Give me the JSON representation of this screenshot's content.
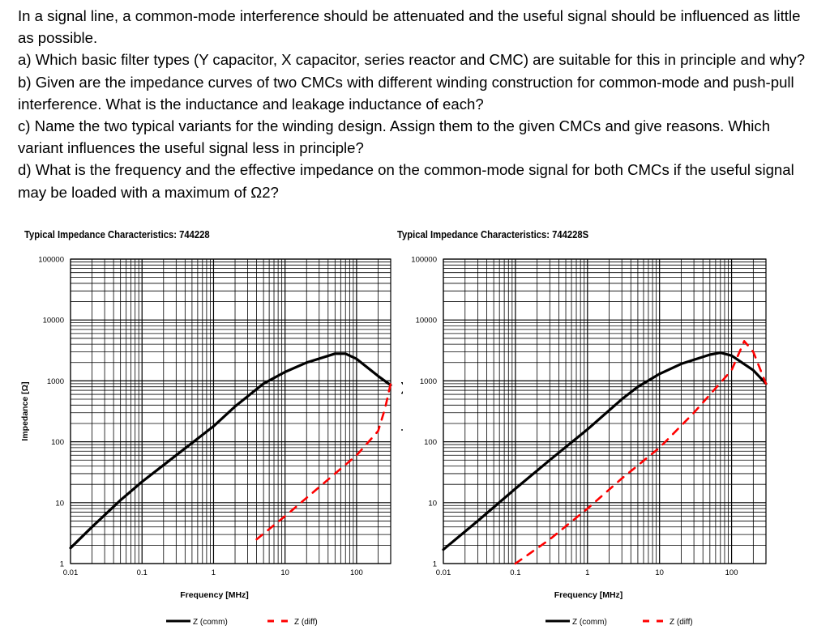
{
  "question": {
    "intro": "In a signal line, a common-mode interference should be attenuated and the useful signal should be influenced as little as possible.",
    "part_a": "a) Which basic filter types (Y capacitor, X capacitor, series reactor and CMC) are suitable for this in principle and why?",
    "part_b": "b) Given are the impedance curves of two CMCs with different winding construction for common-mode and push-pull interference. What is the inductance and leakage inductance of each?",
    "part_c": "c) Name the two typical variants for the winding design. Assign them to the given CMCs and give reasons. Which variant influences the useful signal less in principle?",
    "part_d": "d)  What is the frequency and the effective impedance on the common-mode signal for both CMCs if the useful signal may be loaded with a maximum of Ω2?"
  },
  "charts_meta": {
    "colors": {
      "comm": "#000000",
      "diff": "#ff0000",
      "grid": "#000000"
    }
  },
  "chart_data": [
    {
      "type": "line",
      "title": "Typical Impedance Characteristics:  744228",
      "xlabel": "Frequency [MHz]",
      "ylabel": "Impedance [Ω]",
      "xscale": "log",
      "yscale": "log",
      "xlim": [
        0.01,
        300
      ],
      "ylim": [
        1,
        100000
      ],
      "x_ticks": [
        "0.01",
        "0.1",
        "1",
        "10",
        "100"
      ],
      "y_ticks": [
        "1",
        "10",
        "100",
        "1000",
        "10000",
        "100000"
      ],
      "legend": [
        "Z (comm)",
        "Z (diff)"
      ],
      "series": [
        {
          "name": "Z (comm)",
          "style": "solid",
          "x": [
            0.01,
            0.02,
            0.05,
            0.1,
            0.3,
            1,
            2,
            5,
            10,
            20,
            50,
            70,
            100,
            200,
            300
          ],
          "y": [
            1.8,
            4,
            11,
            22,
            60,
            180,
            380,
            900,
            1400,
            2000,
            2800,
            2800,
            2300,
            1200,
            850
          ]
        },
        {
          "name": "Z (diff)",
          "style": "dashed",
          "x": [
            4,
            10,
            30,
            100,
            200,
            250,
            300
          ],
          "y": [
            2.5,
            6,
            18,
            60,
            150,
            350,
            900
          ]
        }
      ]
    },
    {
      "type": "line",
      "title": "Typical Impedance Characteristics:  744228S",
      "xlabel": "Frequency [MHz]",
      "ylabel": "Impedance [Ω]",
      "xscale": "log",
      "yscale": "log",
      "xlim": [
        0.01,
        300
      ],
      "ylim": [
        1,
        100000
      ],
      "x_ticks": [
        "0.01",
        "0.1",
        "1",
        "10",
        "100"
      ],
      "y_ticks": [
        "1",
        "10",
        "100",
        "1000",
        "10000",
        "100000"
      ],
      "legend": [
        "Z (comm)",
        "Z (diff)"
      ],
      "series": [
        {
          "name": "Z (comm)",
          "style": "solid",
          "x": [
            0.01,
            0.03,
            0.1,
            0.3,
            1,
            3,
            5,
            10,
            20,
            50,
            70,
            100,
            200,
            300
          ],
          "y": [
            1.7,
            5,
            17,
            50,
            160,
            500,
            800,
            1300,
            1900,
            2700,
            2900,
            2600,
            1500,
            900
          ]
        },
        {
          "name": "Z (diff)",
          "style": "dashed",
          "x": [
            0.1,
            0.3,
            1,
            3,
            10,
            30,
            100,
            150,
            200,
            300
          ],
          "y": [
            1,
            2.5,
            8,
            25,
            80,
            300,
            1500,
            4500,
            3000,
            900
          ]
        }
      ]
    }
  ]
}
